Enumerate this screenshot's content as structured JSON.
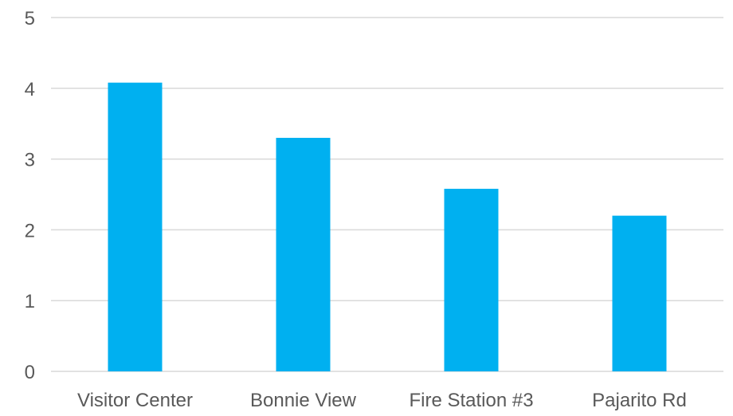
{
  "chart_data": {
    "type": "bar",
    "categories": [
      "Visitor Center",
      "Bonnie View",
      "Fire Station #3",
      "Pajarito Rd"
    ],
    "values": [
      4.08,
      3.3,
      2.58,
      2.2
    ],
    "ylim": [
      0,
      5
    ],
    "yticks": [
      "0",
      "1",
      "2",
      "3",
      "4",
      "5"
    ],
    "grid": true,
    "bar_color": "#00b0f0",
    "grid_color": "#d9d9d9"
  }
}
